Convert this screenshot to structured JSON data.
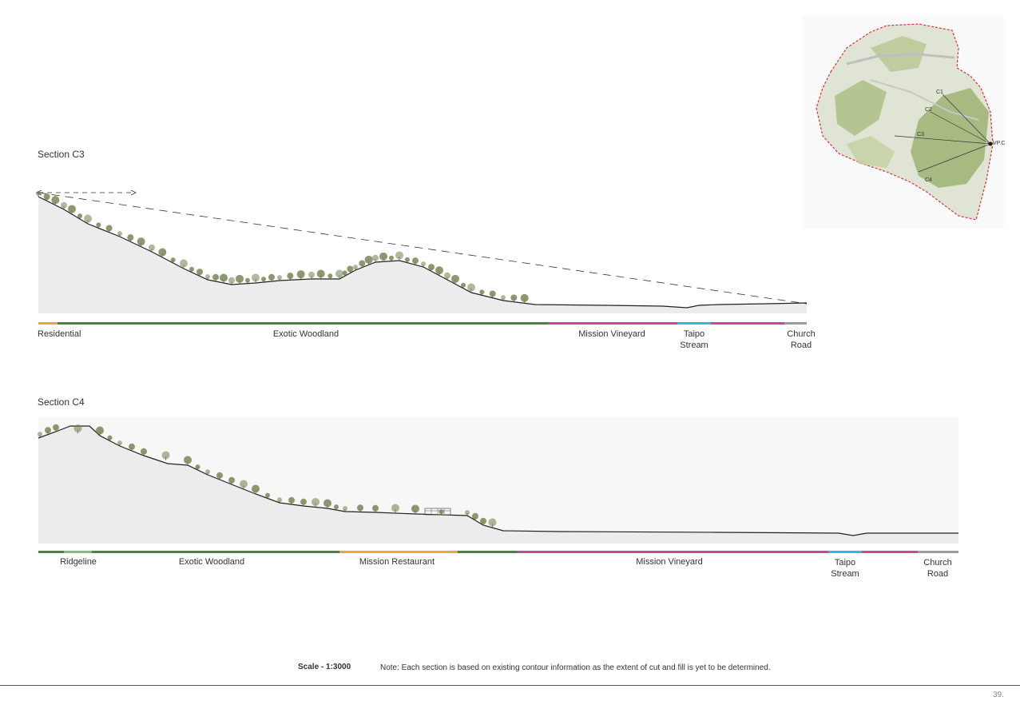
{
  "sections": [
    {
      "title": "Section C3",
      "zones": [
        {
          "label": "Residential",
          "color": "#f2a23a"
        },
        {
          "label": "Exotic Woodland",
          "color": "#3d8b37"
        },
        {
          "label": "Mission Vineyard",
          "color": "#c9449a"
        },
        {
          "label": "Taipo Stream",
          "color": "#36b4e8"
        },
        {
          "label": "",
          "color": "#c9449a"
        },
        {
          "label": "Church Road",
          "color": "#9a9a9a"
        }
      ]
    },
    {
      "title": "Section C4",
      "zones": [
        {
          "label": "",
          "color": "#3d8b37"
        },
        {
          "label": "Ridgeline",
          "color": "#7dc36b"
        },
        {
          "label": "Exotic Woodland",
          "color": "#3d8b37"
        },
        {
          "label": "Mission Restaurant",
          "color": "#f2a23a"
        },
        {
          "label": "",
          "color": "#3d8b37"
        },
        {
          "label": "Mission Vineyard",
          "color": "#c9449a"
        },
        {
          "label": "Taipo Stream",
          "color": "#36b4e8"
        },
        {
          "label": "",
          "color": "#c9449a"
        },
        {
          "label": "Church Road",
          "color": "#9a9a9a"
        }
      ]
    }
  ],
  "keymap": {
    "markers": [
      "C1",
      "C2",
      "C3",
      "C4",
      "VP.C"
    ],
    "colors": {
      "boundary": "#d9343a",
      "vegetation": "#a9bd7f",
      "roads": "#bfbfbf"
    }
  },
  "footer": {
    "scale": "Scale - 1:3000",
    "note": "Note: Each section is based on existing contour information as the extent of cut and fill is yet to be determined.",
    "page": "39."
  },
  "colors": {
    "ground_fill": "#ececec",
    "ground_line": "#222222",
    "tree": "#6f7f4a"
  }
}
